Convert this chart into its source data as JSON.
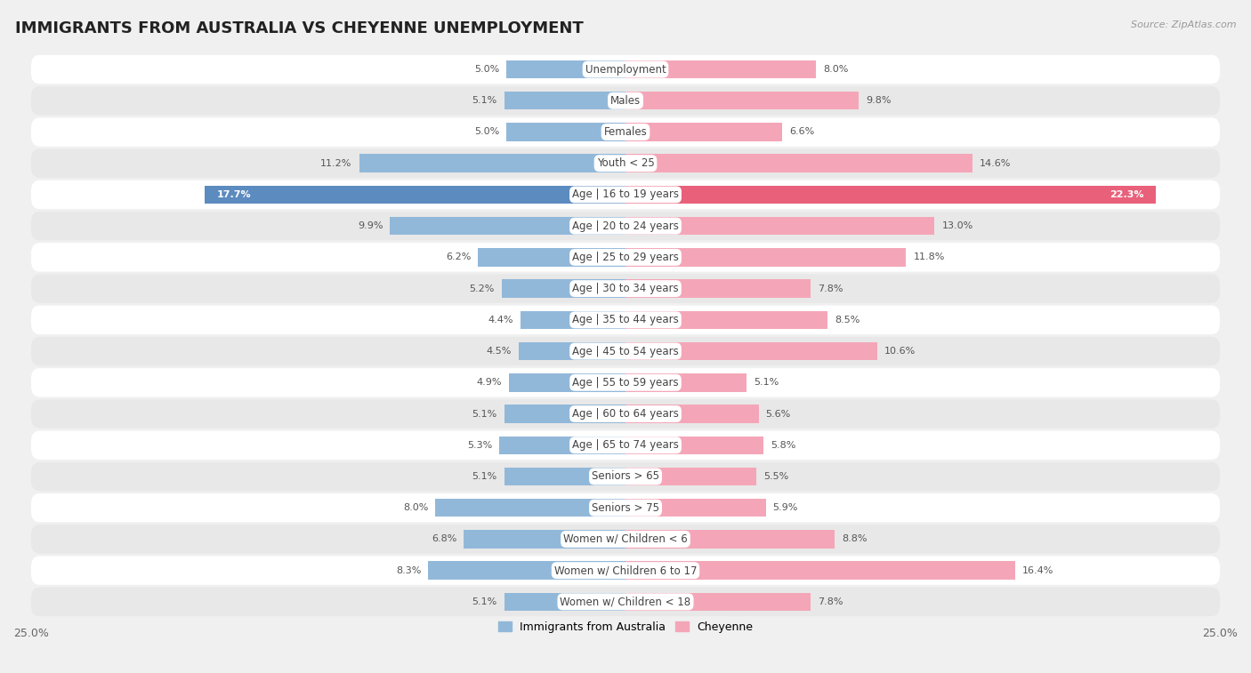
{
  "title": "IMMIGRANTS FROM AUSTRALIA VS CHEYENNE UNEMPLOYMENT",
  "source": "Source: ZipAtlas.com",
  "categories": [
    "Unemployment",
    "Males",
    "Females",
    "Youth < 25",
    "Age | 16 to 19 years",
    "Age | 20 to 24 years",
    "Age | 25 to 29 years",
    "Age | 30 to 34 years",
    "Age | 35 to 44 years",
    "Age | 45 to 54 years",
    "Age | 55 to 59 years",
    "Age | 60 to 64 years",
    "Age | 65 to 74 years",
    "Seniors > 65",
    "Seniors > 75",
    "Women w/ Children < 6",
    "Women w/ Children 6 to 17",
    "Women w/ Children < 18"
  ],
  "left_values": [
    5.0,
    5.1,
    5.0,
    11.2,
    17.7,
    9.9,
    6.2,
    5.2,
    4.4,
    4.5,
    4.9,
    5.1,
    5.3,
    5.1,
    8.0,
    6.8,
    8.3,
    5.1
  ],
  "right_values": [
    8.0,
    9.8,
    6.6,
    14.6,
    22.3,
    13.0,
    11.8,
    7.8,
    8.5,
    10.6,
    5.1,
    5.6,
    5.8,
    5.5,
    5.9,
    8.8,
    16.4,
    7.8
  ],
  "left_color": "#92b8d9",
  "right_color": "#f4a6b8",
  "highlight_left_color": "#5b8bbf",
  "highlight_right_color": "#e8607a",
  "highlight_rows": [
    4
  ],
  "axis_limit": 25.0,
  "bar_height": 0.58,
  "background_color": "#f0f0f0",
  "row_bg_even": "#ffffff",
  "row_bg_odd": "#e8e8e8",
  "legend_left": "Immigrants from Australia",
  "legend_right": "Cheyenne",
  "title_fontsize": 13,
  "label_fontsize": 8.5,
  "value_fontsize": 8.0,
  "value_color_normal": "#555555",
  "value_color_highlight": "#ffffff"
}
